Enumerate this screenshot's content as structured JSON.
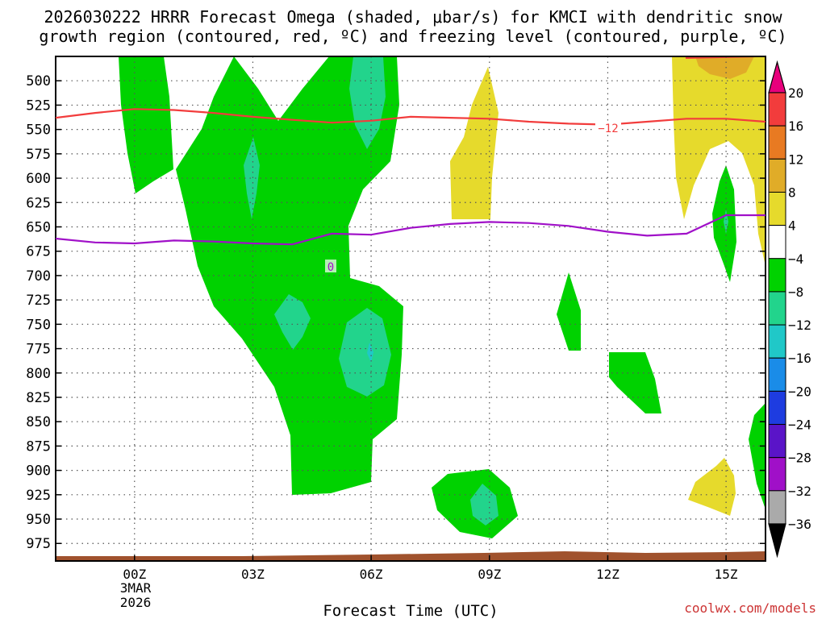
{
  "chart_data": {
    "type": "heatmap",
    "title_line1": "2026030222 HRRR Forecast Omega (shaded, μbar/s) for KMCI with dendritic snow",
    "title_line2": "growth region (contoured, red, ºC) and freezing level (contoured, purple, ºC)",
    "xlabel": "Forecast Time (UTC)",
    "x_ticks": [
      "00Z",
      "03Z",
      "06Z",
      "09Z",
      "12Z",
      "15Z"
    ],
    "x_tick_hours": [
      0,
      3,
      6,
      9,
      12,
      15
    ],
    "xlim_hours": [
      -2,
      16
    ],
    "date_label_line1": "3MAR",
    "date_label_line2": "2026",
    "y_ticks": [
      500,
      525,
      550,
      575,
      600,
      625,
      650,
      675,
      700,
      725,
      750,
      775,
      800,
      825,
      850,
      875,
      900,
      925,
      950,
      975
    ],
    "ylim": [
      475,
      993
    ],
    "y_scale": "reversed (pressure, hPa)",
    "grid": true,
    "colorbar": {
      "labels": [
        "20",
        "16",
        "12",
        "8",
        "4",
        "−4",
        "−8",
        "−12",
        "−16",
        "−20",
        "−24",
        "−28",
        "−32",
        "−36"
      ],
      "colors": [
        "#e8007c",
        "#f23c3c",
        "#e87a22",
        "#e0ac28",
        "#e6da2c",
        "#ffffff",
        "#00d200",
        "#22d48c",
        "#20c8c8",
        "#1a8ce8",
        "#1e3ce0",
        "#5a14c8",
        "#a010c8",
        "#aaaaaa",
        "#000000"
      ]
    },
    "contour_labels": {
      "dgz": "−12",
      "freezing": "0"
    },
    "series": [
      {
        "name": "−12",
        "points": [
          [
            -2,
            538
          ],
          [
            -1,
            533
          ],
          [
            0,
            529
          ],
          [
            1,
            530
          ],
          [
            2,
            533
          ],
          [
            3,
            537
          ],
          [
            4,
            540
          ],
          [
            5,
            543
          ],
          [
            6,
            541
          ],
          [
            7,
            537
          ],
          [
            8,
            538
          ],
          [
            9,
            539
          ],
          [
            10,
            542
          ],
          [
            11,
            544
          ],
          [
            12,
            545
          ],
          [
            13,
            542
          ],
          [
            14,
            539
          ],
          [
            15,
            539
          ],
          [
            16,
            542
          ]
        ]
      },
      {
        "name": "0",
        "points": [
          [
            -2,
            662
          ],
          [
            -1,
            666
          ],
          [
            0,
            667
          ],
          [
            1,
            664
          ],
          [
            2,
            665
          ],
          [
            3,
            667
          ],
          [
            4,
            668
          ],
          [
            5,
            657
          ],
          [
            6,
            658
          ],
          [
            7,
            651
          ],
          [
            8,
            647
          ],
          [
            9,
            645
          ],
          [
            10,
            646
          ],
          [
            11,
            649
          ],
          [
            12,
            655
          ],
          [
            13,
            659
          ],
          [
            14,
            657
          ],
          [
            15,
            638
          ],
          [
            16,
            638
          ]
        ]
      }
    ],
    "watermark": "coolwx.com/models"
  }
}
